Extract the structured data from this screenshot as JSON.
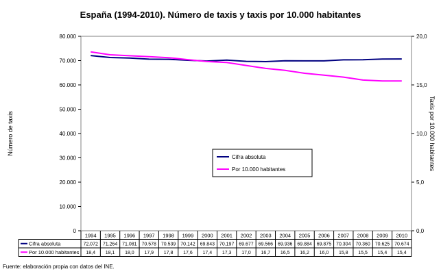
{
  "chart_data": {
    "type": "line",
    "title": "España (1994-2010). Número de taxis y taxis por 10.000 habitantes",
    "ylabel_left": "Número de taxis",
    "ylabel_right": "Taxis por 10.000 habitantes",
    "ylim_left": [
      0,
      80000
    ],
    "ylim_right": [
      0,
      20
    ],
    "yticks_left": [
      "0",
      "10.000",
      "20.000",
      "30.000",
      "40.000",
      "50.000",
      "60.000",
      "70.000",
      "80.000"
    ],
    "yticks_right": [
      "0,0",
      "5,0",
      "10,0",
      "15,0",
      "20,0"
    ],
    "grid": false,
    "legend_placement": "center",
    "categories": [
      "1994",
      "1995",
      "1996",
      "1997",
      "1998",
      "1999",
      "2000",
      "2001",
      "2002",
      "2003",
      "2004",
      "2005",
      "2006",
      "2007",
      "2008",
      "2009",
      "2010"
    ],
    "series": [
      {
        "name": "Cifra absoluta",
        "axis": "left",
        "color": "#000080",
        "values": [
          72072,
          71264,
          71081,
          70578,
          70539,
          70142,
          69843,
          70197,
          69677,
          69566,
          69936,
          69884,
          69875,
          70304,
          70360,
          70625,
          70674
        ],
        "labels": [
          "72.072",
          "71.264",
          "71.081",
          "70.578",
          "70.539",
          "70.142",
          "69.843",
          "70.197",
          "69.677",
          "69.566",
          "69.936",
          "69.884",
          "69.875",
          "70.304",
          "70.360",
          "70.625",
          "70.674"
        ]
      },
      {
        "name": "Por 10.000 habitantes",
        "axis": "right",
        "color": "#ff00ff",
        "values": [
          18.4,
          18.1,
          18.0,
          17.9,
          17.8,
          17.6,
          17.4,
          17.3,
          17.0,
          16.7,
          16.5,
          16.2,
          16.0,
          15.8,
          15.5,
          15.4,
          15.4
        ],
        "labels": [
          "18,4",
          "18,1",
          "18,0",
          "17,9",
          "17,8",
          "17,6",
          "17,4",
          "17,3",
          "17,0",
          "16,7",
          "16,5",
          "16,2",
          "16,0",
          "15,8",
          "15,5",
          "15,4",
          "15,4"
        ]
      }
    ]
  },
  "source": "Fuente: elaboración propia con datos del INE."
}
